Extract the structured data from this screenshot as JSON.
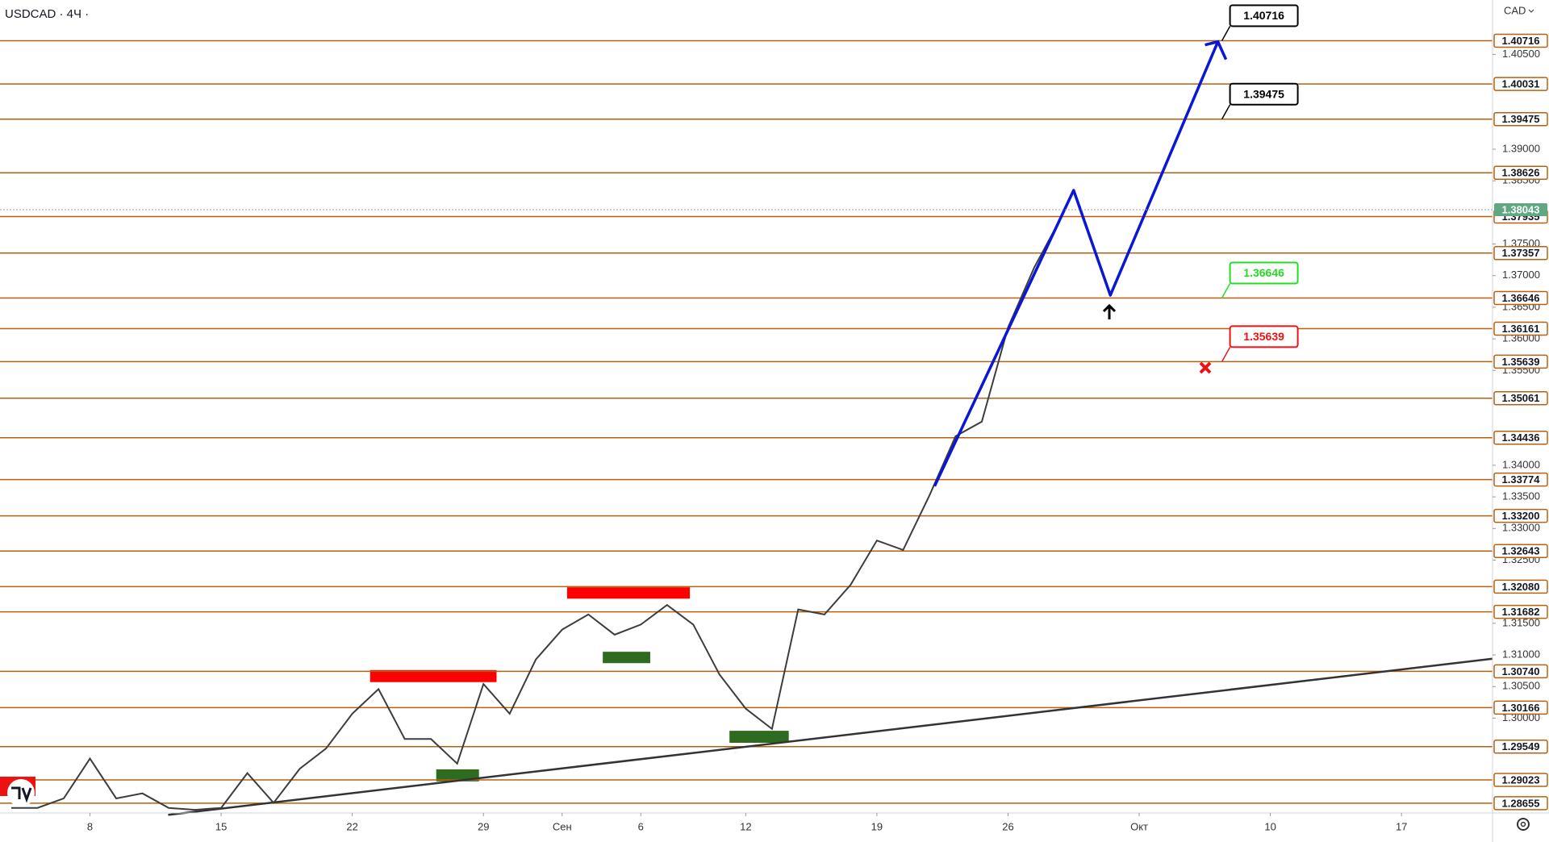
{
  "chart_data": {
    "type": "line",
    "title": "USDCAD · 4Ч ·",
    "currency": "CAD",
    "x": [
      -3,
      -2,
      -1,
      0,
      1,
      2,
      3,
      4,
      5,
      6,
      7,
      8,
      9,
      10,
      11,
      12,
      13,
      14,
      15,
      16,
      17,
      18,
      19,
      20,
      21,
      22,
      23,
      24,
      25,
      26,
      27,
      28,
      29,
      30,
      31,
      32,
      33,
      34,
      35,
      36,
      37
    ],
    "values": [
      1.2858,
      1.2858,
      1.2873,
      1.2936,
      1.2873,
      1.2881,
      1.2858,
      1.2855,
      1.2858,
      1.2913,
      1.2866,
      1.292,
      1.2952,
      1.3007,
      1.3046,
      1.2967,
      1.2967,
      1.2928,
      1.3054,
      1.3007,
      1.3093,
      1.314,
      1.3164,
      1.3132,
      1.3148,
      1.3179,
      1.3148,
      1.3069,
      1.3015,
      1.2983,
      1.3172,
      1.3164,
      1.3211,
      1.3281,
      1.3266,
      1.3352,
      1.3446,
      1.3469,
      1.3618,
      1.3713,
      1.379
    ],
    "color": "#3d3d3d",
    "xlim": [
      -3.43,
      53.47
    ],
    "xticks": [
      {
        "value": 0,
        "label": "8"
      },
      {
        "value": 5,
        "label": "15"
      },
      {
        "value": 10,
        "label": "22"
      },
      {
        "value": 15,
        "label": "29"
      },
      {
        "value": 18,
        "label": "Сен"
      },
      {
        "value": 21,
        "label": "6"
      },
      {
        "value": 25,
        "label": "12"
      },
      {
        "value": 30,
        "label": "19"
      },
      {
        "value": 35,
        "label": "26"
      },
      {
        "value": 40,
        "label": "Окт"
      },
      {
        "value": 45,
        "label": "10"
      },
      {
        "value": 50,
        "label": "17"
      }
    ],
    "ylim": [
      1.285,
      1.4136
    ],
    "yticks": [
      {
        "value": 1.405,
        "label": "1.40500"
      },
      {
        "value": 1.39,
        "label": "1.39000"
      },
      {
        "value": 1.385,
        "label": "1.38500"
      },
      {
        "value": 1.375,
        "label": "1.37500"
      },
      {
        "value": 1.37,
        "label": "1.37000"
      },
      {
        "value": 1.365,
        "label": "1.36500"
      },
      {
        "value": 1.36,
        "label": "1.36000"
      },
      {
        "value": 1.355,
        "label": "1.35500"
      },
      {
        "value": 1.34,
        "label": "1.34000"
      },
      {
        "value": 1.335,
        "label": "1.33500"
      },
      {
        "value": 1.33,
        "label": "1.33000"
      },
      {
        "value": 1.325,
        "label": "1.32500"
      },
      {
        "value": 1.315,
        "label": "1.31500"
      },
      {
        "value": 1.31,
        "label": "1.31000"
      },
      {
        "value": 1.305,
        "label": "1.30500"
      },
      {
        "value": 1.3,
        "label": "1.30000"
      }
    ],
    "levels": [
      1.40716,
      1.40031,
      1.39475,
      1.38626,
      1.37935,
      1.37357,
      1.36646,
      1.36161,
      1.35639,
      1.35061,
      1.34436,
      1.33774,
      {
        "value": 1.332,
        "label": "1.33200"
      },
      1.32643,
      {
        "value": 1.3208,
        "label": "1.32080"
      },
      1.31682,
      {
        "value": 1.3074,
        "label": "1.30740"
      },
      1.30166,
      1.29549,
      1.29023,
      1.28655
    ],
    "level_color": "#b8600f",
    "current_price": {
      "value": 1.38043,
      "color": "#5fa882"
    },
    "forecast": {
      "x": [
        32.2,
        37.5,
        38.9,
        43.0
      ],
      "values": [
        1.3367,
        1.3835,
        1.3669,
        1.407
      ],
      "color": "#0a17d4"
    },
    "trendline": {
      "x": [
        2.98,
        53.47
      ],
      "values": [
        1.2847,
        1.3094
      ],
      "color": "#333333"
    },
    "zones": [
      {
        "color": "#ff0000",
        "x": [
          10.68,
          15.5
        ],
        "y": [
          1.3057,
          1.3076
        ]
      },
      {
        "color": "#ff0000",
        "x": [
          18.19,
          22.87
        ],
        "y": [
          1.3189,
          1.3207
        ]
      },
      {
        "color": "#2e6b1f",
        "x": [
          13.2,
          14.83
        ],
        "y": [
          1.29,
          1.2919
        ]
      },
      {
        "color": "#2e6b1f",
        "x": [
          19.55,
          21.36
        ],
        "y": [
          1.3087,
          1.3105
        ]
      },
      {
        "color": "#2e6b1f",
        "x": [
          24.38,
          26.64
        ],
        "y": [
          1.2961,
          1.298
        ]
      }
    ],
    "callouts": [
      {
        "value": 1.40716,
        "color": "#000000"
      },
      {
        "value": 1.39475,
        "color": "#000000"
      },
      {
        "value": 1.36646,
        "color": "#22dd22"
      },
      {
        "value": 1.35639,
        "color": "#ee1111"
      }
    ]
  }
}
